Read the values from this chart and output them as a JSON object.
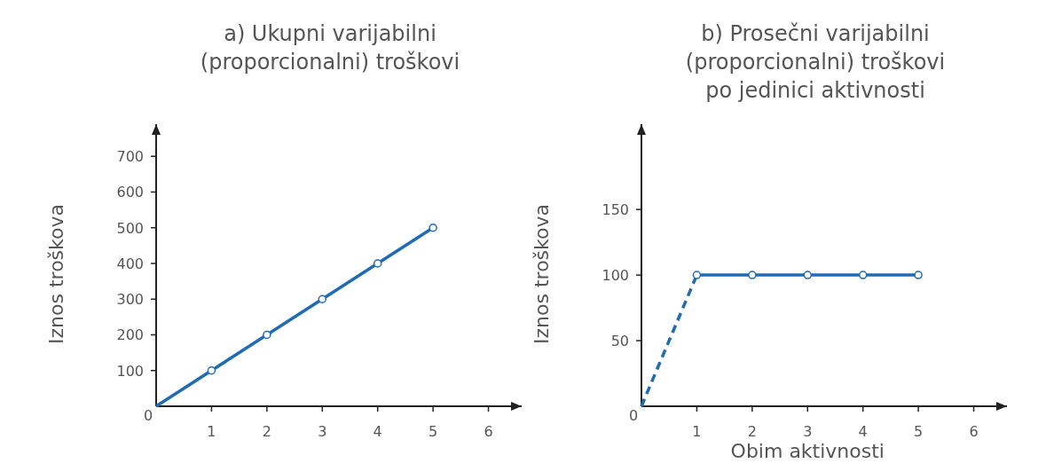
{
  "chart_data": [
    {
      "type": "line",
      "title": "a) Ukupni varijabilni\n(proporcionalni) troškovi",
      "ylabel": "Iznos troškova",
      "annotations": [
        "0"
      ],
      "xlim": [
        0,
        6.6
      ],
      "ylim": [
        0,
        790
      ],
      "xticks": [
        1,
        2,
        3,
        4,
        5,
        6
      ],
      "yticks": [
        100,
        200,
        300,
        400,
        500,
        600,
        700
      ],
      "grid": false,
      "series": [
        {
          "color": "#1f6bb4",
          "x": [
            0,
            5
          ],
          "values": [
            0,
            500
          ],
          "line_style": "solid"
        },
        {
          "type": "scatter",
          "color": "#1f6bb4",
          "x": [
            1,
            2,
            3,
            4,
            5
          ],
          "values": [
            100,
            200,
            300,
            400,
            500
          ],
          "marker": "circle"
        }
      ]
    },
    {
      "type": "line",
      "title": "b) Prosečni varijabilni\n(proporcionalni) troškovi\npo jedinici aktivnosti",
      "xlabel": "Obim aktivnosti",
      "ylabel": "Iznos troškova",
      "annotations": [
        "0"
      ],
      "xlim": [
        0,
        6.6
      ],
      "ylim": [
        0,
        215
      ],
      "xticks": [
        1,
        2,
        3,
        4,
        5,
        6
      ],
      "yticks": [
        50,
        100,
        150
      ],
      "grid": false,
      "series": [
        {
          "color": "#1f6bb4",
          "x": [
            0,
            1
          ],
          "values": [
            0,
            100
          ],
          "line_style": "dashed"
        },
        {
          "color": "#1f6bb4",
          "x": [
            1,
            2,
            3,
            4,
            5
          ],
          "values": [
            100,
            100,
            100,
            100,
            100
          ],
          "marker": "circle",
          "line_style": "solid"
        }
      ]
    }
  ]
}
